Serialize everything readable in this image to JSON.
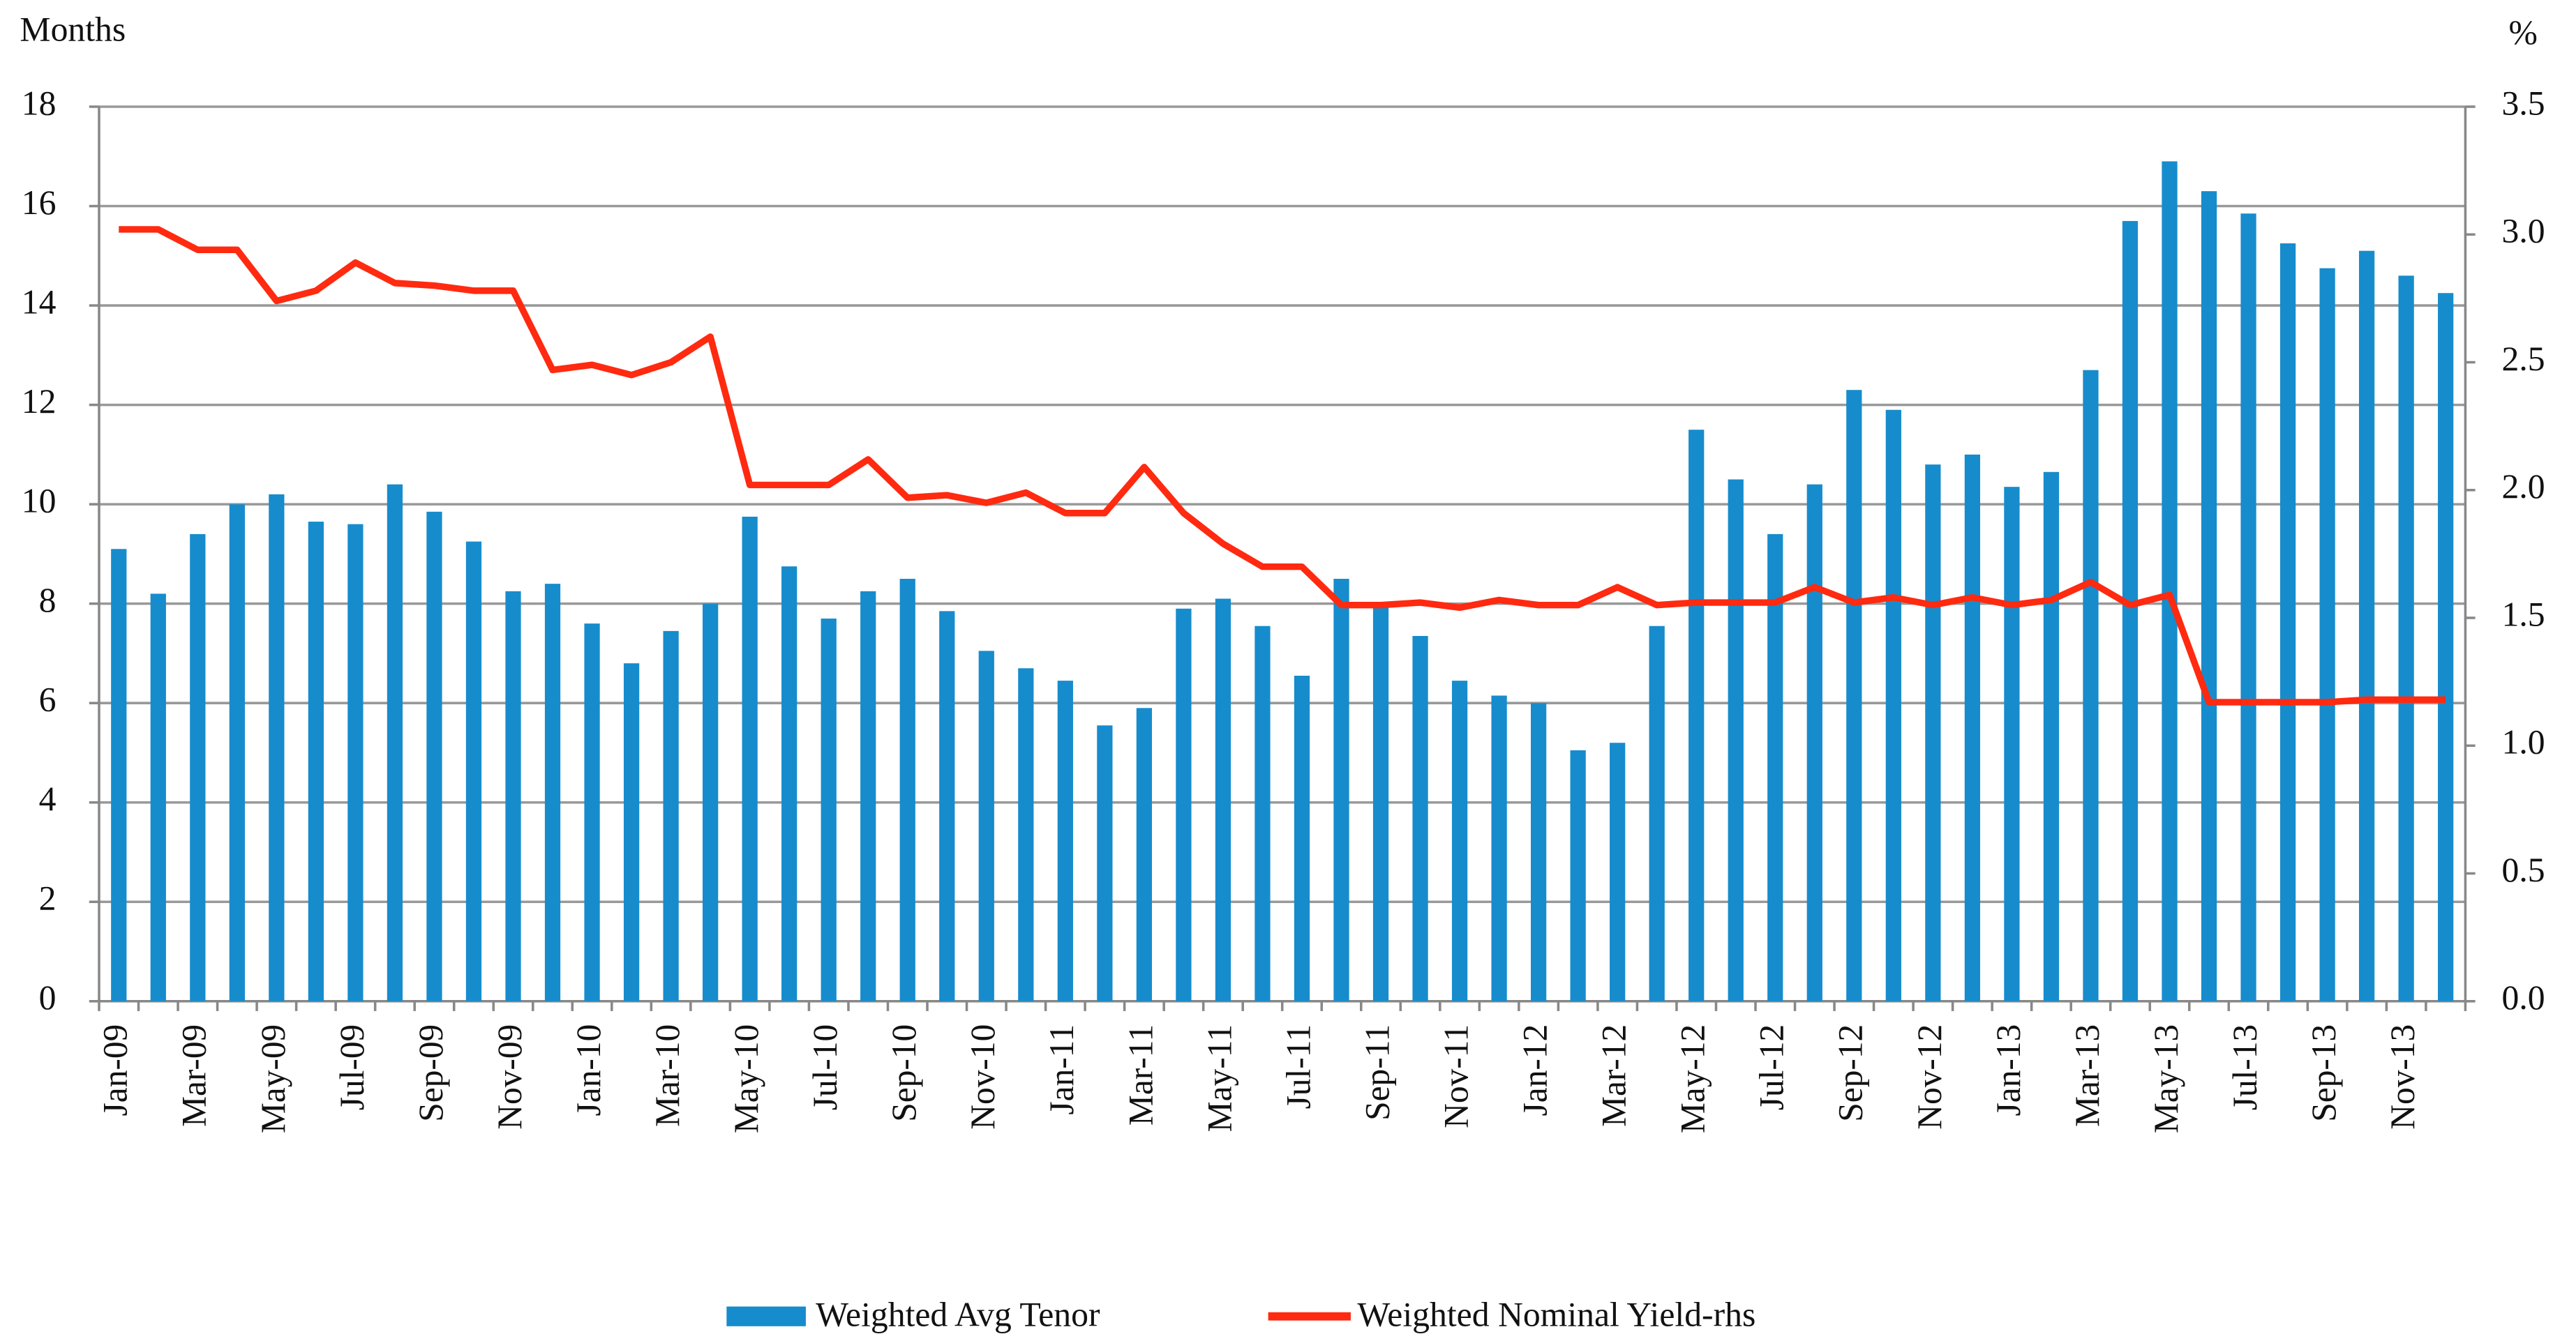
{
  "chart_data": {
    "type": "bar-line",
    "left_axis_label": "Months",
    "right_axis_label": "%",
    "categories": [
      "Jan-09",
      null,
      "Mar-09",
      null,
      "May-09",
      null,
      "Jul-09",
      null,
      "Sep-09",
      null,
      "Nov-09",
      null,
      "Jan-10",
      null,
      "Mar-10",
      null,
      "May-10",
      null,
      "Jul-10",
      null,
      "Sep-10",
      null,
      "Nov-10",
      null,
      "Jan-11",
      null,
      "Mar-11",
      null,
      "May-11",
      null,
      "Jul-11",
      null,
      "Sep-11",
      null,
      "Nov-11",
      null,
      "Jan-12",
      null,
      "Mar-12",
      null,
      "May-12",
      null,
      "Jul-12",
      null,
      "Sep-12",
      null,
      "Nov-12",
      null,
      "Jan-13",
      null,
      "Mar-13",
      null,
      "May-13",
      null,
      "Jul-13",
      null,
      "Sep-13",
      null,
      "Nov-13",
      null
    ],
    "series": [
      {
        "name": "Weighted Avg Tenor",
        "type": "bar",
        "color": "#168ccd",
        "values": [
          9.1,
          8.2,
          9.4,
          10.0,
          10.2,
          9.65,
          9.6,
          10.4,
          9.85,
          9.25,
          8.25,
          8.4,
          7.6,
          6.8,
          7.45,
          8.0,
          9.75,
          8.75,
          7.7,
          8.25,
          8.5,
          7.85,
          7.05,
          6.7,
          6.45,
          5.55,
          5.9,
          7.9,
          8.1,
          7.55,
          6.55,
          8.5,
          8.0,
          7.35,
          6.45,
          6.15,
          6.0,
          5.05,
          5.2,
          7.55,
          11.5,
          10.5,
          9.4,
          10.4,
          12.3,
          11.9,
          10.8,
          11.0,
          10.35,
          10.65,
          12.7,
          15.7,
          16.9,
          16.3,
          15.85,
          15.25,
          14.75,
          15.1,
          14.6,
          14.25
        ]
      },
      {
        "name": "Weighted Nominal Yield-rhs",
        "type": "line",
        "axis": "y2",
        "color": "#ff2a10",
        "values": [
          3.02,
          3.02,
          2.94,
          2.94,
          2.74,
          2.78,
          2.89,
          2.81,
          2.8,
          2.78,
          2.78,
          2.47,
          2.49,
          2.45,
          2.5,
          2.6,
          2.02,
          2.02,
          2.02,
          2.12,
          1.97,
          1.98,
          1.95,
          1.99,
          1.91,
          1.91,
          2.09,
          1.91,
          1.79,
          1.7,
          1.7,
          1.55,
          1.55,
          1.56,
          1.54,
          1.57,
          1.55,
          1.55,
          1.62,
          1.55,
          1.56,
          1.56,
          1.56,
          1.62,
          1.56,
          1.58,
          1.55,
          1.58,
          1.55,
          1.57,
          1.64,
          1.55,
          1.59,
          1.17,
          1.17,
          1.17,
          1.17,
          1.18,
          1.18,
          1.18
        ]
      }
    ],
    "ylim": [
      0,
      18
    ],
    "yticks": [
      0,
      2,
      4,
      6,
      8,
      10,
      12,
      14,
      16,
      18
    ],
    "y2lim": [
      0,
      3.5
    ],
    "y2ticks": [
      {
        "value": 0,
        "label": "0.0"
      },
      0.5,
      {
        "value": 1,
        "label": "1.0"
      },
      1.5,
      {
        "value": 2,
        "label": "2.0"
      },
      2.5,
      {
        "value": 3,
        "label": "3.0"
      },
      3.5
    ],
    "grid": true,
    "legend": "bottom"
  }
}
